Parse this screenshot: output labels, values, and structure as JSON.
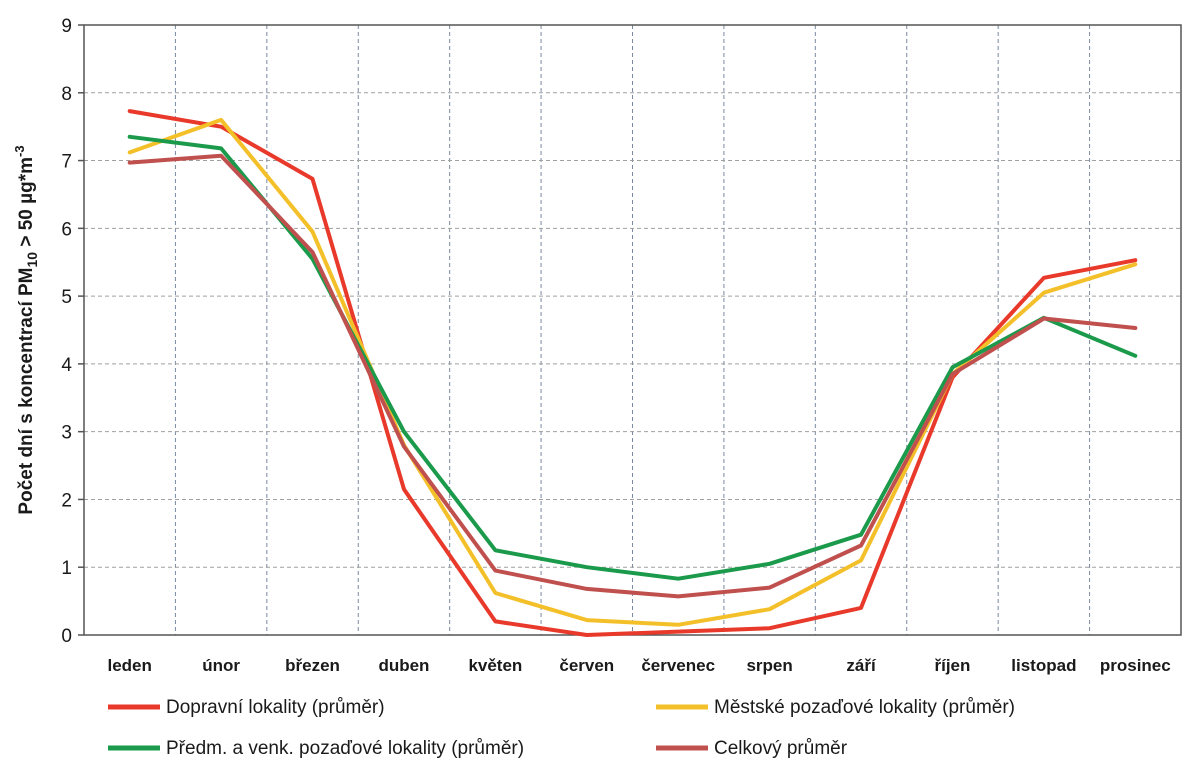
{
  "chart_data": {
    "type": "line",
    "title": "",
    "xlabel": "",
    "ylabel": {
      "prefix": "Počet dní s koncentrací PM",
      "sub": "10",
      "middle": " > 50 µg*m",
      "sup": "-3"
    },
    "ylim": [
      0,
      9
    ],
    "yticks": [
      "0",
      "1",
      "2",
      "3",
      "4",
      "5",
      "6",
      "7",
      "8",
      "9"
    ],
    "categories": [
      "leden",
      "únor",
      "březen",
      "duben",
      "květen",
      "červen",
      "červenec",
      "srpen",
      "září",
      "říjen",
      "listopad",
      "prosinec"
    ],
    "grid": true,
    "legend_position": "bottom",
    "series": [
      {
        "name": "Dopravní lokality (průměr)",
        "color": "#e8392b",
        "values": [
          7.73,
          7.5,
          6.73,
          2.15,
          0.2,
          0.0,
          0.05,
          0.1,
          0.4,
          3.8,
          5.27,
          5.53
        ]
      },
      {
        "name": "Městské pozaďové lokality (průměr)",
        "color": "#f4c02a",
        "values": [
          7.12,
          7.6,
          5.95,
          2.8,
          0.62,
          0.22,
          0.15,
          0.38,
          1.1,
          3.85,
          5.05,
          5.47
        ]
      },
      {
        "name": "Předm. a venk. pozaďové lokality (průměr)",
        "color": "#1a9a4a",
        "values": [
          7.35,
          7.18,
          5.55,
          3.0,
          1.25,
          1.0,
          0.83,
          1.05,
          1.48,
          3.95,
          4.68,
          4.12
        ]
      },
      {
        "name": "Celkový průměr",
        "color": "#c0504d",
        "values": [
          6.97,
          7.07,
          5.65,
          2.78,
          0.95,
          0.68,
          0.57,
          0.7,
          1.32,
          3.85,
          4.67,
          4.53
        ]
      }
    ]
  }
}
